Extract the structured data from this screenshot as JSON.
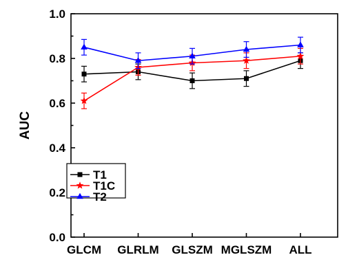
{
  "chart_data": {
    "type": "line",
    "categories": [
      "GLCM",
      "GLRLM",
      "GLSZM",
      "MGLSZM",
      "ALL"
    ],
    "ylabel": "AUC",
    "xlabel": "",
    "ylim": [
      0.0,
      1.0
    ],
    "yticks": [
      "0.0",
      "0.2",
      "0.4",
      "0.6",
      "0.8",
      "1.0"
    ],
    "legend_position": "bottom-left",
    "grid": false,
    "series": [
      {
        "name": "T1",
        "color": "#000000",
        "marker": "square",
        "values": [
          0.73,
          0.74,
          0.7,
          0.71,
          0.79
        ],
        "errors": [
          0.035,
          0.035,
          0.035,
          0.035,
          0.035
        ]
      },
      {
        "name": "T1C",
        "color": "#ff0000",
        "marker": "star",
        "values": [
          0.61,
          0.76,
          0.78,
          0.79,
          0.81
        ],
        "errors": [
          0.035,
          0.035,
          0.035,
          0.035,
          0.035
        ]
      },
      {
        "name": "T2",
        "color": "#0000ff",
        "marker": "triangle",
        "values": [
          0.85,
          0.79,
          0.81,
          0.84,
          0.86
        ],
        "errors": [
          0.035,
          0.035,
          0.035,
          0.035,
          0.035
        ]
      }
    ]
  }
}
